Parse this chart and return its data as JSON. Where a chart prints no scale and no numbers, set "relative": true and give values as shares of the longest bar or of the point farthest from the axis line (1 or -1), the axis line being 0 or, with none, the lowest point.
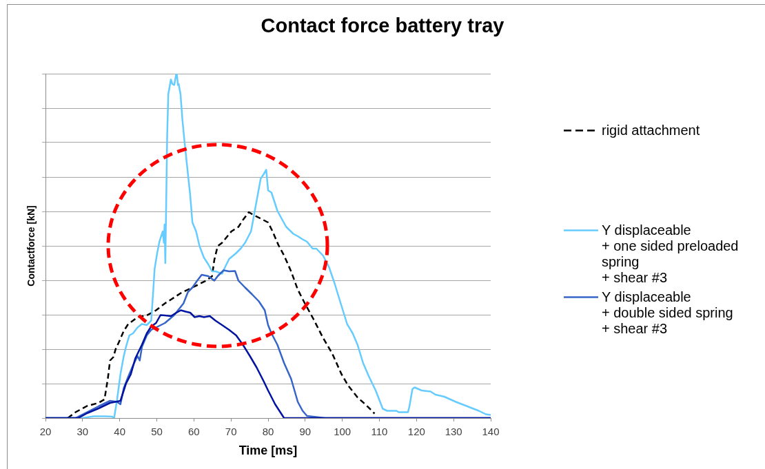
{
  "chart_data": {
    "type": "line",
    "title": "Contact force battery tray",
    "xlabel": "Time [ms]",
    "ylabel": "Contactforce [kN]",
    "relative": true,
    "xlim": [
      20,
      140
    ],
    "xticks": [
      20,
      30,
      40,
      50,
      60,
      70,
      80,
      90,
      100,
      110,
      120,
      130,
      140
    ],
    "tick_labels": "x",
    "grid": "y",
    "legend": "right",
    "marker": "none",
    "series": [
      {
        "name": "rigid attachment",
        "color": "#000000",
        "line_style": "dashed",
        "x": [
          26.0,
          28.1,
          31.2,
          34.3,
          35.9,
          36.8,
          37.4,
          38.3,
          38.9,
          39.9,
          41.1,
          42.3,
          43.6,
          44.8,
          47.3,
          49.8,
          52.2,
          54.1,
          56.5,
          58.4,
          60.9,
          63.3,
          64.9,
          65.5,
          66.4,
          67.6,
          70.1,
          72.0,
          73.2,
          74.8,
          75.7,
          77.5,
          80.0,
          81.2,
          82.8,
          84.3,
          86.2,
          88.0,
          89.9,
          92.3,
          94.8,
          97.3,
          99.8,
          101.6,
          104.1,
          106.5,
          108.7
        ],
        "values": [
          0,
          0.017,
          0.035,
          0.044,
          0.054,
          0.114,
          0.167,
          0.177,
          0.2,
          0.223,
          0.253,
          0.273,
          0.283,
          0.293,
          0.298,
          0.313,
          0.333,
          0.346,
          0.363,
          0.373,
          0.386,
          0.399,
          0.412,
          0.459,
          0.499,
          0.509,
          0.542,
          0.555,
          0.575,
          0.598,
          0.592,
          0.582,
          0.568,
          0.542,
          0.502,
          0.472,
          0.426,
          0.373,
          0.333,
          0.286,
          0.233,
          0.187,
          0.127,
          0.094,
          0.06,
          0.037,
          0.013
        ]
      },
      {
        "name": "Y displaceable\n+ one sided preloaded spring\n+ shear #3",
        "color": "#66ccff",
        "x": [
          20,
          30,
          33,
          36,
          38,
          38.5,
          39.3,
          40.2,
          41.1,
          41.7,
          42.6,
          43.6,
          44.8,
          46.0,
          47.3,
          48.5,
          49.1,
          49.4,
          50.1,
          50.7,
          51.6,
          51.9,
          52.1,
          52.3,
          52.8,
          53.1,
          53.8,
          54.2,
          54.7,
          55.2,
          55.4,
          55.7,
          55.9,
          56.4,
          56.9,
          57.5,
          58.4,
          59.0,
          59.6,
          60.6,
          61.5,
          62.7,
          63.9,
          64.9,
          65.8,
          67.6,
          68.3,
          69.5,
          71.4,
          72.6,
          73.8,
          75.4,
          76.3,
          77.2,
          78.0,
          78.8,
          79.5,
          80.0,
          80.9,
          81.9,
          82.5,
          83.7,
          84.9,
          86.8,
          88.0,
          89.3,
          90.5,
          92.0,
          93.0,
          94.8,
          96.4,
          97.9,
          99.4,
          101.3,
          102.8,
          104.1,
          105.6,
          107.2,
          109.0,
          110.9,
          112.1,
          114.6,
          115.2,
          117.7,
          118.1,
          118.9,
          119.5,
          121.4,
          123.8,
          125.1,
          127.5,
          130.6,
          133.7,
          136.8,
          138.7,
          140
        ],
        "values": [
          0,
          0,
          0.005,
          0.005,
          0.004,
          0,
          0.054,
          0.127,
          0.18,
          0.207,
          0.24,
          0.246,
          0.263,
          0.273,
          0.27,
          0.283,
          0.379,
          0.432,
          0.479,
          0.512,
          0.542,
          0.509,
          0.562,
          0.45,
          0.82,
          0.94,
          0.983,
          0.97,
          0.967,
          0.997,
          1,
          0.967,
          0.97,
          0.94,
          0.867,
          0.8,
          0.708,
          0.648,
          0.568,
          0.542,
          0.5,
          0.466,
          0.446,
          0.426,
          0.426,
          0.419,
          0.436,
          0.462,
          0.479,
          0.492,
          0.509,
          0.542,
          0.595,
          0.648,
          0.695,
          0.708,
          0.721,
          0.661,
          0.655,
          0.622,
          0.602,
          0.578,
          0.555,
          0.535,
          0.528,
          0.519,
          0.512,
          0.492,
          0.492,
          0.472,
          0.439,
          0.392,
          0.339,
          0.273,
          0.246,
          0.213,
          0.16,
          0.12,
          0.08,
          0.027,
          0.021,
          0.021,
          0.017,
          0.017,
          0.034,
          0.084,
          0.089,
          0.08,
          0.077,
          0.068,
          0.062,
          0.047,
          0.034,
          0.021,
          0.011,
          0.009
        ]
      },
      {
        "name": "Y displaceable\n+ double sided spring\n+ shear #3",
        "color": "#3764c8",
        "x": [
          20,
          28.1,
          31.2,
          34.3,
          37.4,
          39.3,
          40.2,
          41.1,
          42.3,
          43.6,
          44.8,
          45.4,
          46.0,
          47.3,
          48.5,
          49.8,
          52.2,
          54.7,
          57.2,
          58.4,
          59.6,
          60.9,
          62.1,
          63.9,
          65.5,
          66.4,
          68.0,
          69.5,
          71.1,
          72.0,
          73.8,
          75.7,
          77.5,
          79.1,
          80.0,
          80.9,
          82.5,
          84.3,
          86.2,
          88.0,
          89.3,
          90.5,
          95.4,
          140
        ],
        "values": [
          0,
          0,
          0.017,
          0.034,
          0.05,
          0.047,
          0.04,
          0.087,
          0.12,
          0.153,
          0.18,
          0.167,
          0.207,
          0.24,
          0.256,
          0.263,
          0.276,
          0.299,
          0.333,
          0.366,
          0.379,
          0.399,
          0.416,
          0.412,
          0.399,
          0.412,
          0.429,
          0.426,
          0.427,
          0.399,
          0.379,
          0.359,
          0.339,
          0.313,
          0.27,
          0.246,
          0.213,
          0.16,
          0.114,
          0.047,
          0.021,
          0.006,
          0,
          0
        ]
      },
      {
        "color": "#0014a0",
        "x": [
          20,
          28.8,
          31.2,
          34.3,
          37.4,
          40.2,
          41.1,
          41.7,
          43.0,
          44.2,
          45.1,
          46.0,
          47.3,
          48.5,
          49.8,
          51.0,
          52.2,
          53.8,
          55.3,
          56.5,
          57.8,
          59.0,
          60.2,
          61.5,
          62.7,
          64.3,
          65.8,
          67.6,
          69.5,
          71.4,
          73.2,
          75.1,
          76.9,
          78.8,
          80.0,
          81.9,
          84.3,
          140
        ],
        "values": [
          0,
          0,
          0.014,
          0.028,
          0.044,
          0.05,
          0.08,
          0.1,
          0.127,
          0.173,
          0.193,
          0.213,
          0.246,
          0.266,
          0.276,
          0.299,
          0.298,
          0.296,
          0.306,
          0.313,
          0.309,
          0.306,
          0.293,
          0.296,
          0.293,
          0.296,
          0.283,
          0.27,
          0.256,
          0.24,
          0.213,
          0.18,
          0.147,
          0.107,
          0.08,
          0.04,
          0,
          0
        ]
      }
    ]
  }
}
